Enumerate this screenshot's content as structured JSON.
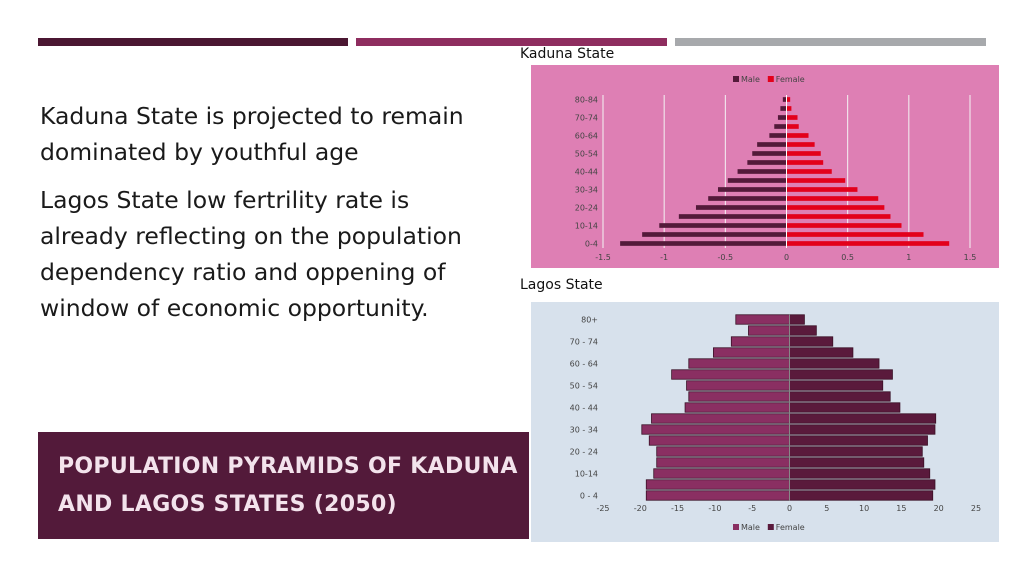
{
  "colors": {
    "bar_dark": "#4b1732",
    "bar_mid": "#8e2d5f",
    "bar_grey": "#a7a9ac",
    "title_bg": "#531a3a",
    "title_fg": "#f3e3ec",
    "kaduna_bg": "#de7fb4",
    "lagos_bg": "#d7e1ec",
    "kaduna_male": "#531a3a",
    "kaduna_female": "#e3001b",
    "lagos_male": "#8a2f62",
    "lagos_female": "#5a1a3c"
  },
  "bullets": [
    "Kaduna State is projected to remain dominated by youthful age",
    "Lagos State low fertrility rate is already reflecting on the population dependency ratio and oppening of window of economic opportunity."
  ],
  "slide_title": "Population Pyramids of Kaduna and Lagos States (2050)",
  "chart_data": [
    {
      "type": "bar",
      "orientation": "horizontal-pyramid",
      "title": "Kaduna State",
      "legend_position": "top",
      "grid": true,
      "xlim": [
        -1.5,
        1.5
      ],
      "x_ticks": [
        "-1.5",
        "-1",
        "-0.5",
        "0",
        "0.5",
        "1",
        "1.5"
      ],
      "x_tick_values": [
        -1.5,
        -1,
        -0.5,
        0,
        0.5,
        1,
        1.5
      ],
      "categories": [
        "0-4",
        "5-9",
        "10-14",
        "15-19",
        "20-24",
        "25-29",
        "30-34",
        "35-39",
        "40-44",
        "45-49",
        "50-54",
        "55-59",
        "60-64",
        "65-69",
        "70-74",
        "75-79",
        "80-84"
      ],
      "category_labels": [
        "0-4",
        "",
        "10-14",
        "",
        "20-24",
        "",
        "30-34",
        "",
        "40-44",
        "",
        "50-54",
        "",
        "60-64",
        "",
        "70-74",
        "",
        "80-84"
      ],
      "series": [
        {
          "name": "Male",
          "values": [
            -1.36,
            -1.18,
            -1.04,
            -0.88,
            -0.74,
            -0.64,
            -0.56,
            -0.48,
            -0.4,
            -0.32,
            -0.28,
            -0.24,
            -0.14,
            -0.1,
            -0.07,
            -0.05,
            -0.03
          ]
        },
        {
          "name": "Female",
          "values": [
            1.33,
            1.12,
            0.94,
            0.85,
            0.8,
            0.75,
            0.58,
            0.48,
            0.37,
            0.3,
            0.28,
            0.23,
            0.18,
            0.1,
            0.09,
            0.04,
            0.03
          ]
        }
      ]
    },
    {
      "type": "bar",
      "orientation": "horizontal-pyramid",
      "title": "Lagos State",
      "legend_position": "bottom",
      "grid": false,
      "xlim": [
        -25,
        25
      ],
      "x_ticks": [
        "-25",
        "-20",
        "-15",
        "-10",
        "-5",
        "0",
        "5",
        "10",
        "15",
        "20",
        "25"
      ],
      "x_tick_values": [
        -25,
        -20,
        -15,
        -10,
        -5,
        0,
        5,
        10,
        15,
        20,
        25
      ],
      "categories": [
        "0 - 4",
        "5 - 9",
        "10-14",
        "15 - 19",
        "20 - 24",
        "25 - 29",
        "30 - 34",
        "35 - 39",
        "40 - 44",
        "45 - 49",
        "50 - 54",
        "55 - 59",
        "60 - 64",
        "65 - 69",
        "70 - 74",
        "75 - 79",
        "80+"
      ],
      "category_labels": [
        "0 - 4",
        "",
        "10-14",
        "",
        "20 - 24",
        "",
        "30 - 34",
        "",
        "40 - 44",
        "",
        "50 - 54",
        "",
        "60 - 64",
        "",
        "70 - 74",
        "",
        "80+"
      ],
      "series": [
        {
          "name": "Male",
          "values": [
            -19.2,
            -19.2,
            -18.2,
            -17.8,
            -17.8,
            -18.8,
            -19.8,
            -18.5,
            -14.0,
            -13.5,
            -13.8,
            -15.8,
            -13.5,
            -10.2,
            -7.8,
            -5.5,
            -7.2
          ]
        },
        {
          "name": "Female",
          "values": [
            19.2,
            19.5,
            18.8,
            18.0,
            17.8,
            18.5,
            19.5,
            19.6,
            14.8,
            13.5,
            12.5,
            13.8,
            12.0,
            8.5,
            5.8,
            3.6,
            2.0
          ]
        }
      ]
    }
  ]
}
